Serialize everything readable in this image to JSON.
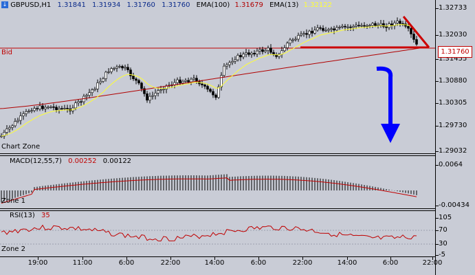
{
  "header": {
    "symbol": "GBPUSD,H1",
    "open": "1.31841",
    "high": "1.31934",
    "low": "1.31760",
    "close": "1.31760",
    "ema100_label": "EMA(100)",
    "ema100_value": "1.31679",
    "ema13_label": "EMA(13)",
    "ema13_value": "1.32122"
  },
  "main": {
    "bid_label": "Bid",
    "zone_label": "Chart Zone",
    "bid_price": "1.31760",
    "price_ticks": [
      "1.32733",
      "1.32030",
      "1.31455",
      "1.30880",
      "1.30305",
      "1.29730",
      "1.29032"
    ]
  },
  "macd": {
    "label": "MACD(12,55,7)",
    "value1": "0.00252",
    "value2": "0.00122",
    "zone_label": "Zone 1",
    "ticks": [
      "0.0064",
      "-0.00434"
    ]
  },
  "rsi": {
    "label": "RSI(13)",
    "value": "35",
    "zone_label": "Zone 2",
    "ticks": [
      "105",
      "70",
      "30",
      "-5"
    ]
  },
  "time_axis": [
    "19:00",
    "11:00",
    "6:00",
    "22:00",
    "14:00",
    "6:00",
    "22:00",
    "14:00",
    "6:00",
    "22:00"
  ],
  "colors": {
    "background": "#c9ccd6",
    "bid_line": "#c00000",
    "ema13": "#ffff33",
    "ema100": "#b00000",
    "annotation_arrow": "#0000ff",
    "annotation_triangle": "#cc0000",
    "header_blue": "#0a2a8a"
  }
}
